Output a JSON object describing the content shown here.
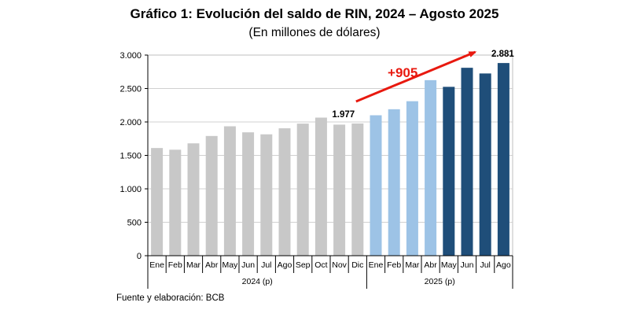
{
  "chart_data": {
    "type": "bar",
    "title": "Gráfico 1: Evolución del saldo de RIN, 2024 – Agosto 2025",
    "subtitle": "(En millones de dólares)",
    "categories": [
      "Ene",
      "Feb",
      "Mar",
      "Abr",
      "May",
      "Jun",
      "Jul",
      "Ago",
      "Sep",
      "Oct",
      "Nov",
      "Dic",
      "Ene",
      "Feb",
      "Mar",
      "Abr",
      "May",
      "Jun",
      "Jul",
      "Ago"
    ],
    "values": [
      1610,
      1585,
      1680,
      1790,
      1935,
      1845,
      1815,
      1905,
      1975,
      2065,
      1960,
      1977,
      2100,
      2190,
      2310,
      2625,
      2525,
      2810,
      2725,
      2881
    ],
    "year_groups": [
      {
        "label": "2024 (p)",
        "count": 12
      },
      {
        "label": "2025 (p)",
        "count": 8
      }
    ],
    "bar_colors": [
      "#c8c8c8",
      "#c8c8c8",
      "#c8c8c8",
      "#c8c8c8",
      "#c8c8c8",
      "#c8c8c8",
      "#c8c8c8",
      "#c8c8c8",
      "#c8c8c8",
      "#c8c8c8",
      "#c8c8c8",
      "#c8c8c8",
      "#9dc3e6",
      "#9dc3e6",
      "#9dc3e6",
      "#9dc3e6",
      "#1f4e79",
      "#1f4e79",
      "#1f4e79",
      "#1f4e79"
    ],
    "ylim": [
      0,
      3000
    ],
    "yticks": [
      0,
      500,
      1000,
      1500,
      2000,
      2500,
      3000
    ],
    "ytick_labels": [
      "0",
      "500",
      "1.000",
      "1.500",
      "2.000",
      "2.500",
      "3.000"
    ],
    "grid": true,
    "annotations": {
      "start_label": "1.977",
      "end_label": "2.881",
      "change_label": "+905",
      "arrow_color": "#e8190f"
    },
    "xlabel": "",
    "ylabel": ""
  },
  "source": "Fuente y elaboración: BCB"
}
